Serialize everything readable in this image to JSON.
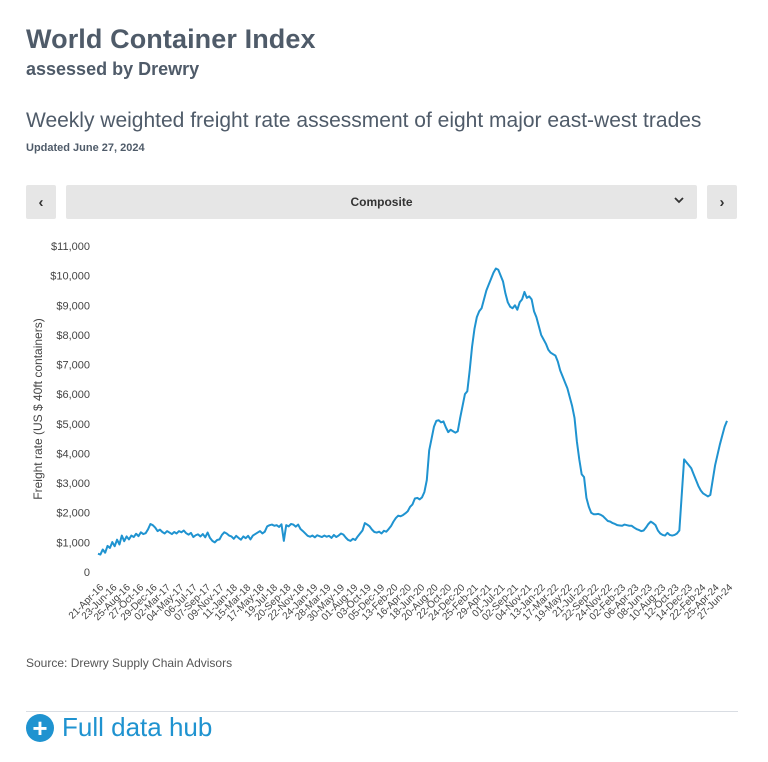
{
  "header": {
    "title": "World Container Index",
    "subtitle": "assessed by Drewry",
    "headline": "Weekly weighted freight rate assessment of eight major east-west trades",
    "updated": "Updated June 27, 2024"
  },
  "controls": {
    "prev_label": "‹",
    "next_label": "›",
    "selected": "Composite",
    "chevron_icon": "chevron-down-icon"
  },
  "source": "Source: Drewry Supply Chain Advisors",
  "hub": {
    "label": "Full data hub",
    "icon": "plus-circle-icon",
    "color": "#1f93d0"
  },
  "chart_data": {
    "type": "line",
    "title": "",
    "ylabel": "Freight rate (US $ 40ft containers)",
    "xlabel": "",
    "ylim": [
      0,
      11000
    ],
    "yticks": [
      0,
      1000,
      2000,
      3000,
      4000,
      5000,
      6000,
      7000,
      8000,
      9000,
      10000,
      11000
    ],
    "ytick_labels": [
      "0",
      "$1,000",
      "$2,000",
      "$3,000",
      "$4,000",
      "$5,000",
      "$6,000",
      "$7,000",
      "$8,000",
      "$9,000",
      "$10,000",
      "$11,000"
    ],
    "xtick_labels": [
      "21-Apr-16",
      "23-Jun-16",
      "25-Aug-16",
      "27-Oct-16",
      "29-Dec-16",
      "02-Mar-17",
      "04-May-17",
      "06-Jul-17",
      "07-Sep-17",
      "09-Nov-17",
      "11-Jan-18",
      "15-Mar-18",
      "17-May-18",
      "19-Jul-18",
      "20-Sep-18",
      "22-Nov-18",
      "24-Jan-19",
      "28-Mar-19",
      "30-May-19",
      "01-Aug-19",
      "03-Oct-19",
      "05-Dec-19",
      "13-Feb-20",
      "16-Apr-20",
      "18-Jun-20",
      "20-Aug-20",
      "22-Oct-20",
      "24-Dec-20",
      "25-Feb-21",
      "29-Apr-21",
      "01-Jul-21",
      "02-Sep-21",
      "04-Nov-21",
      "13-Jan-22",
      "17-Mar-22",
      "19-May-22",
      "21-Jul-22",
      "22-Sep-22",
      "24-Nov-22",
      "02-Feb-23",
      "06-Apr-23",
      "08-Jun-23",
      "10-Aug-23",
      "12-Oct-23",
      "14-Dec-23",
      "22-Feb-24",
      "25-Apr-24",
      "27-Jun-24"
    ],
    "grid": false,
    "line_color": "#1f93d0",
    "series": [
      {
        "values": [
          620,
          590,
          760,
          650,
          880,
          810,
          1010,
          870,
          1090,
          930,
          1230,
          1040,
          1200,
          1100,
          1230,
          1180,
          1290,
          1210,
          1340,
          1280,
          1310,
          1440,
          1620,
          1580,
          1500,
          1380,
          1430,
          1350,
          1300,
          1380,
          1330,
          1280,
          1350,
          1300,
          1380,
          1340,
          1400,
          1310,
          1260,
          1320,
          1180,
          1240,
          1270,
          1200,
          1280,
          1170,
          1330,
          1150,
          1050,
          1000,
          1080,
          1100,
          1250,
          1340,
          1300,
          1230,
          1200,
          1120,
          1220,
          1150,
          1090,
          1200,
          1140,
          1220,
          1100,
          1230,
          1280,
          1330,
          1380,
          1300,
          1360,
          1540,
          1580,
          1600,
          1560,
          1580,
          1520,
          1610,
          1050,
          1580,
          1540,
          1620,
          1600,
          1530,
          1600,
          1450,
          1380,
          1300,
          1220,
          1190,
          1230,
          1170,
          1240,
          1210,
          1180,
          1230,
          1190,
          1220,
          1150,
          1250,
          1180,
          1230,
          1300,
          1260,
          1160,
          1080,
          1050,
          1120,
          1080,
          1200,
          1300,
          1400,
          1650,
          1600,
          1540,
          1430,
          1350,
          1330,
          1360,
          1300,
          1390,
          1360,
          1450,
          1550,
          1700,
          1820,
          1900,
          1880,
          1920,
          1980,
          2050,
          2200,
          2280,
          2480,
          2500,
          2450,
          2520,
          2700,
          3100,
          4100,
          4500,
          4900,
          5100,
          5120,
          5050,
          5080,
          4880,
          4720,
          4800,
          4750,
          4700,
          4750,
          5200,
          5600,
          6000,
          6100,
          6800,
          7600,
          8200,
          8600,
          8800,
          8900,
          9200,
          9500,
          9700,
          9900,
          10100,
          10240,
          10200,
          10000,
          9800,
          9400,
          9100,
          8950,
          8900,
          9000,
          8850,
          9100,
          9200,
          9450,
          9250,
          9300,
          9200,
          8800,
          8600,
          8300,
          8000,
          7850,
          7700,
          7500,
          7400,
          7350,
          7300,
          7100,
          6800,
          6600,
          6400,
          6200,
          5900,
          5600,
          5200,
          4400,
          3800,
          3300,
          3200,
          2500,
          2200,
          2000,
          1950,
          1950,
          1960,
          1930,
          1880,
          1800,
          1720,
          1700,
          1650,
          1620,
          1580,
          1570,
          1560,
          1600,
          1580,
          1560,
          1560,
          1500,
          1450,
          1420,
          1380,
          1400,
          1500,
          1620,
          1700,
          1650,
          1580,
          1400,
          1300,
          1250,
          1230,
          1320,
          1250,
          1230,
          1250,
          1300,
          1400,
          2600,
          3800,
          3700,
          3600,
          3500,
          3300,
          3100,
          2900,
          2750,
          2650,
          2600,
          2550,
          2600,
          3100,
          3600,
          3950,
          4300,
          4600,
          4900,
          5100
        ]
      }
    ]
  }
}
